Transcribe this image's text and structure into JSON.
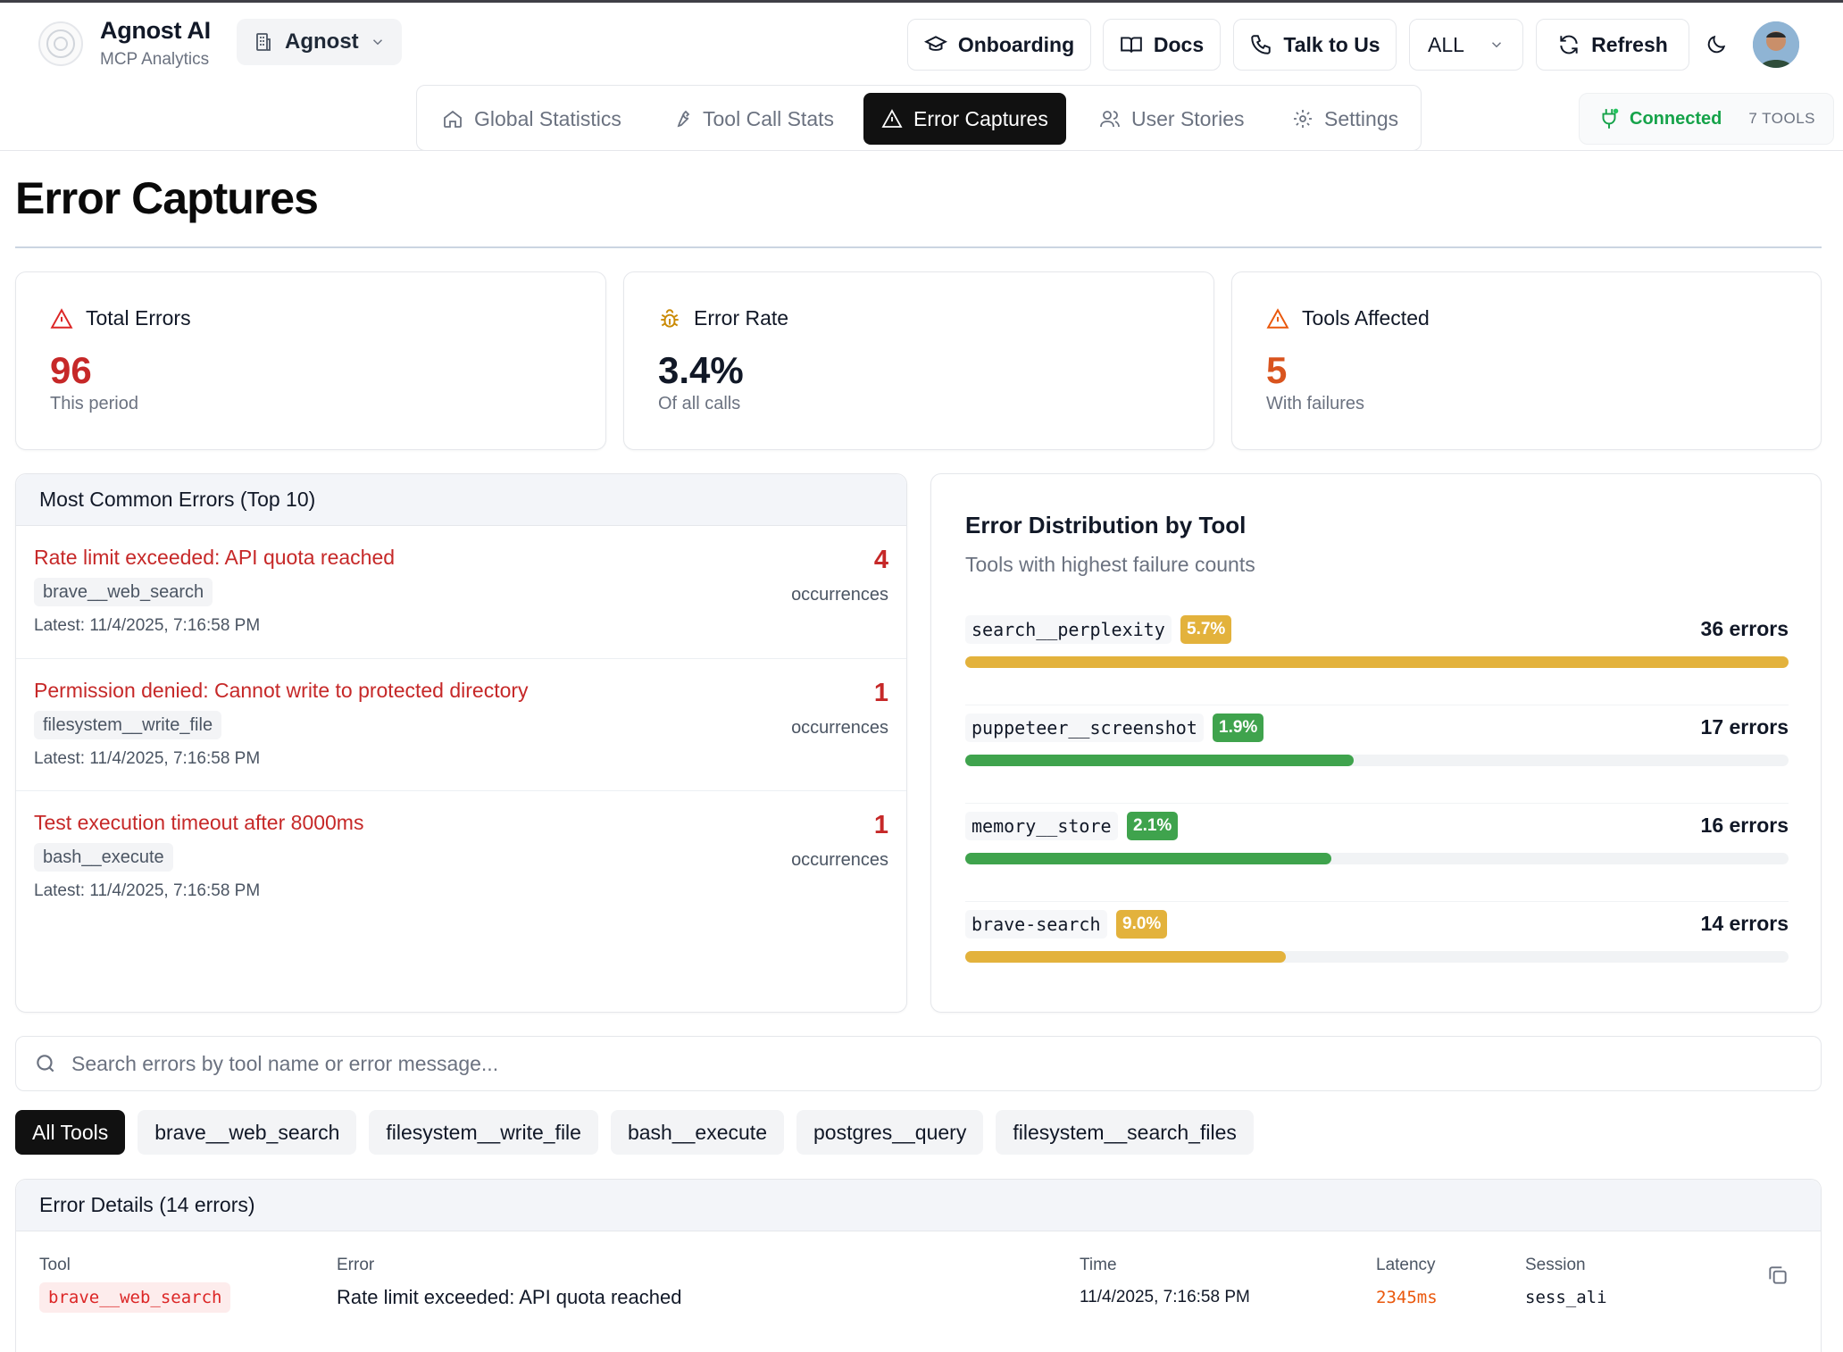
{
  "app": {
    "name": "Agnost AI",
    "subtitle": "MCP Analytics",
    "org": "Agnost"
  },
  "header": {
    "onboarding": "Onboarding",
    "docs": "Docs",
    "talk": "Talk to Us",
    "scope": "ALL",
    "refresh": "Refresh"
  },
  "tabs": [
    {
      "label": "Global Statistics"
    },
    {
      "label": "Tool Call Stats"
    },
    {
      "label": "Error Captures"
    },
    {
      "label": "User Stories"
    },
    {
      "label": "Settings"
    }
  ],
  "connection": {
    "status": "Connected",
    "tools": "7 TOOLS",
    "status_color": "#16a34a"
  },
  "page": {
    "title": "Error Captures"
  },
  "stats": {
    "total": {
      "label": "Total Errors",
      "value": "96",
      "sub": "This period",
      "color": "#c62828"
    },
    "rate": {
      "label": "Error Rate",
      "value": "3.4%",
      "sub": "Of all calls",
      "color": "#111827"
    },
    "tools": {
      "label": "Tools Affected",
      "value": "5",
      "sub": "With failures",
      "color": "#d9541e"
    }
  },
  "common_errors": {
    "title": "Most Common Errors (Top 10)",
    "items": [
      {
        "message": "Rate limit exceeded: API quota reached",
        "tool": "brave__web_search",
        "latest": "Latest: 11/4/2025, 7:16:58 PM",
        "count": "4",
        "occ": "occurrences"
      },
      {
        "message": "Permission denied: Cannot write to protected directory",
        "tool": "filesystem__write_file",
        "latest": "Latest: 11/4/2025, 7:16:58 PM",
        "count": "1",
        "occ": "occurrences"
      },
      {
        "message": "Test execution timeout after 8000ms",
        "tool": "bash__execute",
        "latest": "Latest: 11/4/2025, 7:16:58 PM",
        "count": "1",
        "occ": "occurrences"
      }
    ]
  },
  "distribution": {
    "title": "Error Distribution by Tool",
    "subtitle": "Tools with highest failure counts",
    "rows": [
      {
        "tool": "search__perplexity",
        "pct": "5.7%",
        "count": "36 errors",
        "value": 36,
        "color": "#e3b23c"
      },
      {
        "tool": "puppeteer__screenshot",
        "pct": "1.9%",
        "count": "17 errors",
        "value": 17,
        "color": "#3fa34d"
      },
      {
        "tool": "memory__store",
        "pct": "2.1%",
        "count": "16 errors",
        "value": 16,
        "color": "#3fa34d"
      },
      {
        "tool": "brave-search",
        "pct": "9.0%",
        "count": "14 errors",
        "value": 14,
        "color": "#e3b23c"
      }
    ],
    "max": 36
  },
  "search": {
    "placeholder": "Search errors by tool name or error message...",
    "value": ""
  },
  "filters": [
    {
      "label": "All Tools",
      "active": true
    },
    {
      "label": "brave__web_search"
    },
    {
      "label": "filesystem__write_file"
    },
    {
      "label": "bash__execute"
    },
    {
      "label": "postgres__query"
    },
    {
      "label": "filesystem__search_files"
    }
  ],
  "details": {
    "title": "Error Details (14 errors)",
    "headers": {
      "tool": "Tool",
      "error": "Error",
      "time": "Time",
      "latency": "Latency",
      "session": "Session"
    },
    "row": {
      "tool": "brave__web_search",
      "error": "Rate limit exceeded: API quota reached",
      "time": "11/4/2025, 7:16:58 PM",
      "latency": "2345ms",
      "session": "sess_ali"
    }
  }
}
